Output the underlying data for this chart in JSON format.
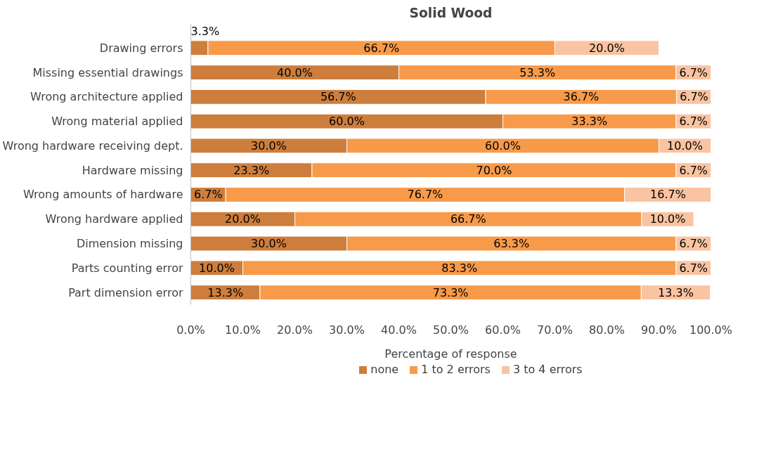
{
  "chart_data": {
    "type": "bar",
    "orientation": "horizontal",
    "stacked": true,
    "title": "Solid Wood",
    "xlabel": "Percentage of response",
    "categories": [
      "Drawing errors",
      "Missing essential drawings",
      "Wrong architecture applied",
      "Wrong material applied",
      "Wrong hardware receiving dept.",
      "Hardware missing",
      "Wrong amounts of hardware",
      "Wrong hardware applied",
      "Dimension missing",
      "Parts counting error",
      "Part dimension error"
    ],
    "series": [
      {
        "name": "none",
        "color": "#cd7e3c",
        "values": [
          3.3,
          40.0,
          56.7,
          60.0,
          30.0,
          23.3,
          6.7,
          20.0,
          30.0,
          10.0,
          13.3
        ],
        "value_labels": [
          "3.3%",
          "40.0%",
          "56.7%",
          "60.0%",
          "30.0%",
          "23.3%",
          "6.7%",
          "20.0%",
          "30.0%",
          "10.0%",
          "13.3%"
        ]
      },
      {
        "name": "1 to 2 errors",
        "color": "#f79a4a",
        "values": [
          66.7,
          53.3,
          36.7,
          33.3,
          60.0,
          70.0,
          76.7,
          66.7,
          63.3,
          83.3,
          73.3
        ],
        "value_labels": [
          "66.7%",
          "53.3%",
          "36.7%",
          "33.3%",
          "60.0%",
          "70.0%",
          "76.7%",
          "66.7%",
          "63.3%",
          "83.3%",
          "73.3%"
        ]
      },
      {
        "name": "3 to 4 errors",
        "color": "#fac3a1",
        "values": [
          20.0,
          6.7,
          6.7,
          6.7,
          10.0,
          6.7,
          16.7,
          10.0,
          6.7,
          6.7,
          13.3
        ],
        "value_labels": [
          "20.0%",
          "6.7%",
          "6.7%",
          "6.7%",
          "10.0%",
          "6.7%",
          "16.7%",
          "10.0%",
          "6.7%",
          "6.7%",
          "13.3%"
        ]
      }
    ],
    "xlim": [
      0,
      100
    ],
    "xticks": [
      {
        "value": 0,
        "label": "0.0%"
      },
      {
        "value": 10,
        "label": "10.0%"
      },
      {
        "value": 20,
        "label": "20.0%"
      },
      {
        "value": 30,
        "label": "30.0%"
      },
      {
        "value": 40,
        "label": "40.0%"
      },
      {
        "value": 50,
        "label": "50.0%"
      },
      {
        "value": 60,
        "label": "60.0%"
      },
      {
        "value": 70,
        "label": "70.0%"
      },
      {
        "value": 80,
        "label": "80.0%"
      },
      {
        "value": 90,
        "label": "90.0%"
      },
      {
        "value": 100,
        "label": "100.0%"
      }
    ],
    "grid": false,
    "legend": "bottom"
  }
}
